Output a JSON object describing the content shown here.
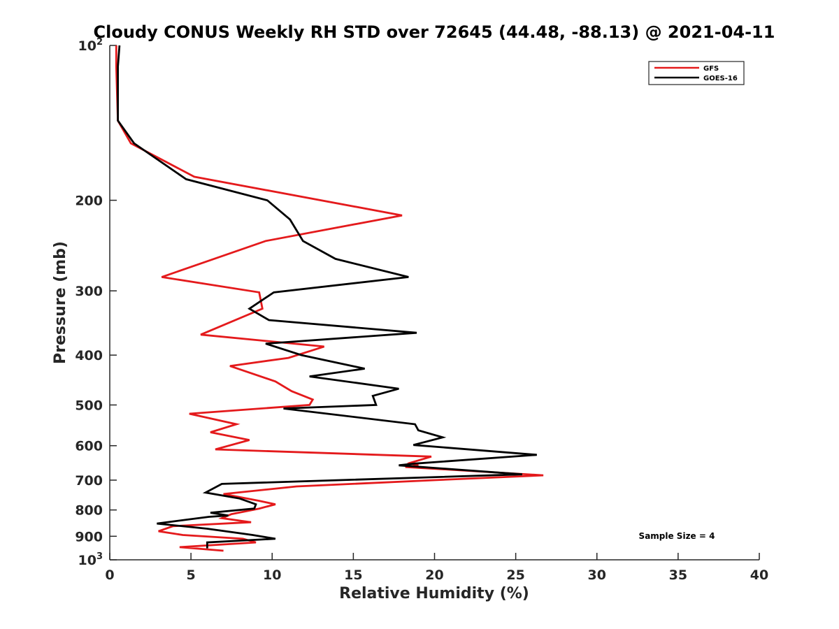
{
  "chart_data": {
    "type": "line",
    "title": "Cloudy CONUS Weekly RH STD over 72645 (44.48, -88.13) @ 2021-04-11",
    "xlabel": "Relative Humidity (%)",
    "ylabel": "Pressure (mb)",
    "xlim": [
      0,
      40
    ],
    "ylim": [
      1000,
      100
    ],
    "yscale": "log",
    "y_reversed": true,
    "x_ticks": [
      "0",
      "5",
      "10",
      "15",
      "20",
      "25",
      "30",
      "35",
      "40"
    ],
    "y_ticks_plain": [
      200,
      300,
      400,
      500,
      600,
      700,
      800,
      900
    ],
    "y_tick_top": {
      "base": "10",
      "exp": "2"
    },
    "y_tick_bottom": {
      "base": "10",
      "exp": "3"
    },
    "grid": false,
    "legend_position": "top-right",
    "annotation": "Sample Size = 4",
    "series": [
      {
        "name": "GFS",
        "color": "#e41a1c",
        "x": [
          0.4,
          0.4,
          0.5,
          1.3,
          5.2,
          18.0,
          9.6,
          3.2,
          9.2,
          9.4,
          5.6,
          13.2,
          11.0,
          7.4,
          10.2,
          11.2,
          12.5,
          12.3,
          4.9,
          7.8,
          6.2,
          8.6,
          6.5,
          19.8,
          18.5,
          19.0,
          18.2,
          26.7,
          20.0,
          11.5,
          7.0,
          9.2,
          10.2,
          9.2,
          7.5,
          6.9,
          8.7,
          3.9,
          3.0,
          4.5,
          8.2,
          9.0,
          4.3,
          7.0
        ],
        "y": [
          100,
          110,
          140,
          155,
          180,
          214,
          240,
          282,
          302,
          325,
          365,
          385,
          405,
          420,
          450,
          470,
          488,
          500,
          520,
          545,
          565,
          585,
          610,
          630,
          648,
          655,
          660,
          685,
          700,
          720,
          745,
          768,
          780,
          795,
          815,
          830,
          845,
          860,
          880,
          895,
          910,
          925,
          945,
          960
        ]
      },
      {
        "name": "GOES-16",
        "color": "#000000",
        "x": [
          0.6,
          0.5,
          0.5,
          1.5,
          4.7,
          9.7,
          11.1,
          11.9,
          13.9,
          18.4,
          10.1,
          8.6,
          9.8,
          18.9,
          9.6,
          11.8,
          15.7,
          12.3,
          17.8,
          16.2,
          16.4,
          10.7,
          18.8,
          19.0,
          20.5,
          18.7,
          26.3,
          18.8,
          17.8,
          25.4,
          6.9,
          5.9,
          8.0,
          9.0,
          8.9,
          6.2,
          7.3,
          6.1,
          2.9,
          6.0,
          8.8,
          10.2,
          6.0,
          6.0
        ],
        "y": [
          100,
          110,
          140,
          155,
          182,
          200,
          218,
          240,
          260,
          282,
          302,
          325,
          342,
          362,
          380,
          400,
          425,
          440,
          465,
          480,
          500,
          508,
          545,
          560,
          578,
          598,
          625,
          650,
          655,
          682,
          712,
          740,
          760,
          780,
          795,
          810,
          820,
          825,
          850,
          870,
          895,
          910,
          925,
          950
        ]
      }
    ]
  }
}
